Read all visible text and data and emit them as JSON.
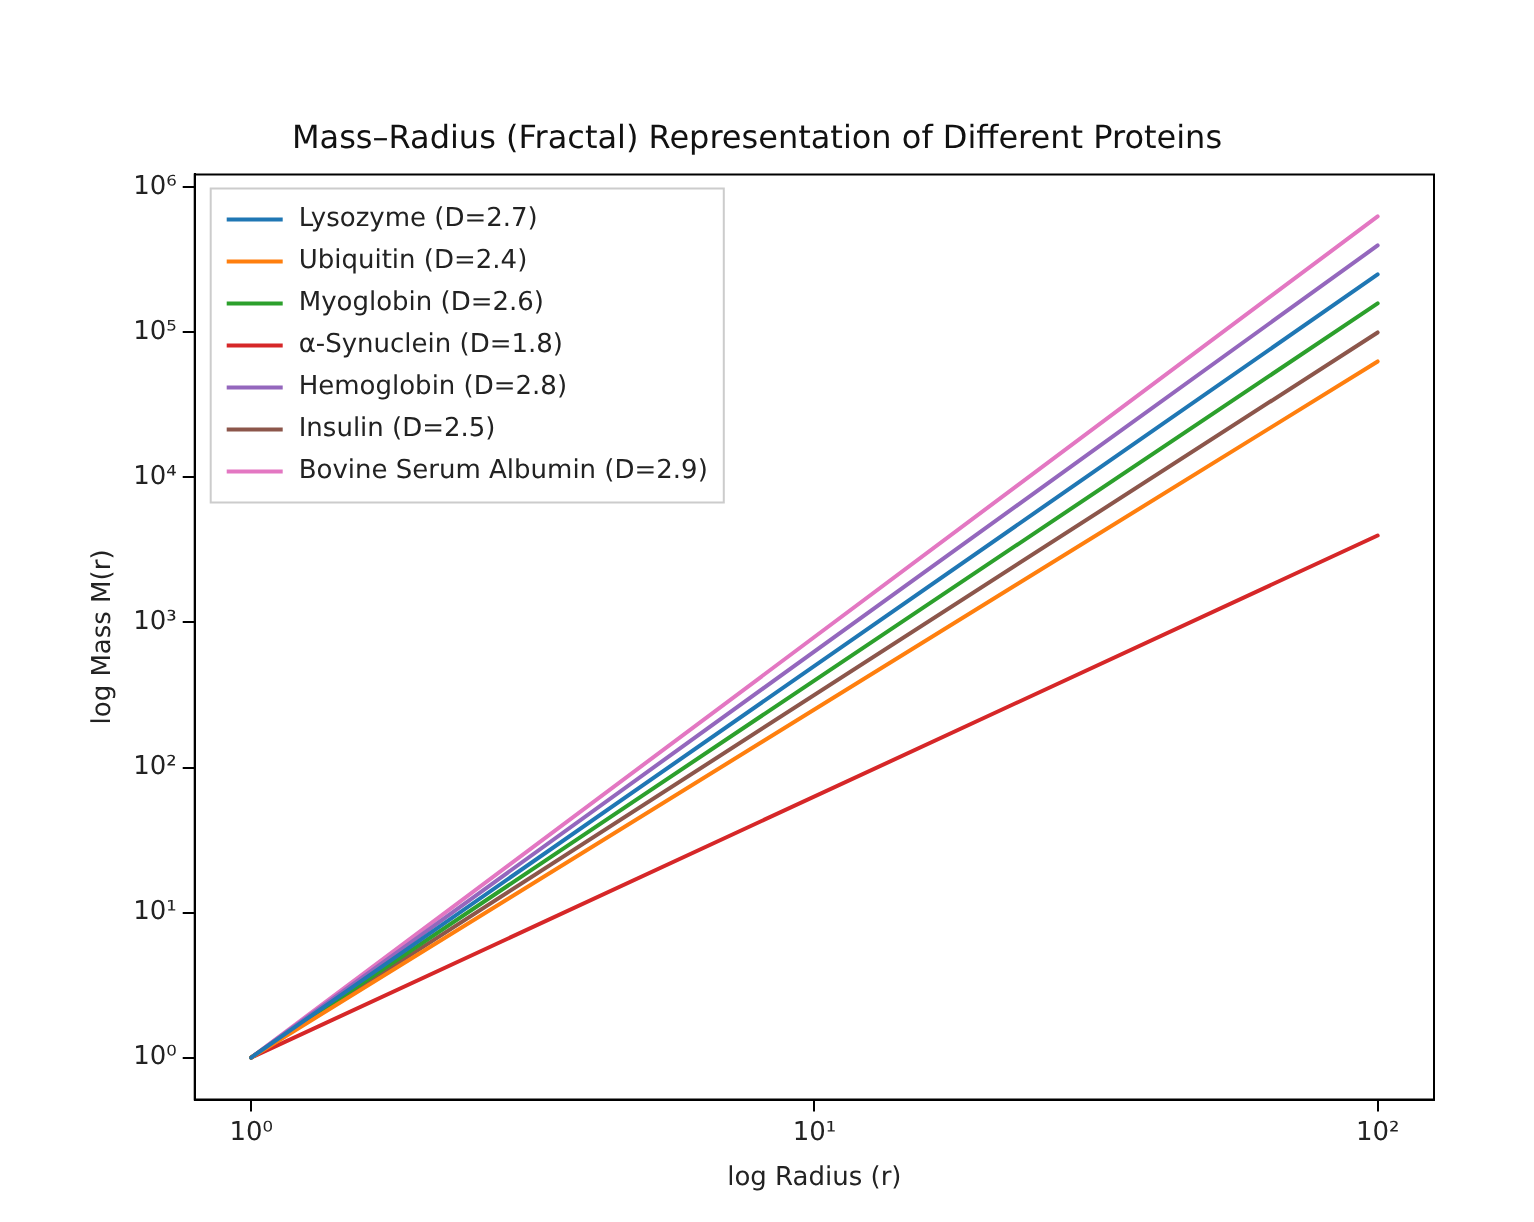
{
  "chart_data": {
    "type": "line",
    "title": "Mass–Radius (Fractal) Representation of Different Proteins",
    "xlabel": "log Radius (r)",
    "ylabel": "log Mass M(r)",
    "log": "xy",
    "x": [
      1,
      100
    ],
    "series": [
      {
        "name": "Lysozyme (D=2.7)",
        "color": "#1f77b4",
        "values": [
          1,
          251189
        ]
      },
      {
        "name": "Ubiquitin (D=2.4)",
        "color": "#ff7f0e",
        "values": [
          1,
          63096
        ]
      },
      {
        "name": "Myoglobin (D=2.6)",
        "color": "#2ca02c",
        "values": [
          1,
          158489
        ]
      },
      {
        "name": "α-Synuclein (D=1.8)",
        "color": "#d62728",
        "values": [
          1,
          3981
        ]
      },
      {
        "name": "Hemoglobin (D=2.8)",
        "color": "#9467bd",
        "values": [
          1,
          398107
        ]
      },
      {
        "name": "Insulin (D=2.5)",
        "color": "#8c564b",
        "values": [
          1,
          100000
        ]
      },
      {
        "name": "Bovine Serum Albumin (D=2.9)",
        "color": "#e377c2",
        "values": [
          1,
          630957
        ]
      }
    ],
    "xlim": [
      0.794,
      125.9
    ],
    "ylim": [
      0.513,
      1230000
    ],
    "xticks": [
      {
        "value": 1,
        "label": "10⁰"
      },
      {
        "value": 10,
        "label": "10¹"
      },
      {
        "value": 100,
        "label": "10²"
      }
    ],
    "yticks": [
      {
        "value": 1,
        "label": "10⁰"
      },
      {
        "value": 10,
        "label": "10¹"
      },
      {
        "value": 100,
        "label": "10²"
      },
      {
        "value": 1000,
        "label": "10³"
      },
      {
        "value": 10000,
        "label": "10⁴"
      },
      {
        "value": 100000,
        "label": "10⁵"
      },
      {
        "value": 1000000,
        "label": "10⁶"
      }
    ],
    "grid": false,
    "legend": "top left",
    "marker": "none",
    "line_style": "solid"
  }
}
